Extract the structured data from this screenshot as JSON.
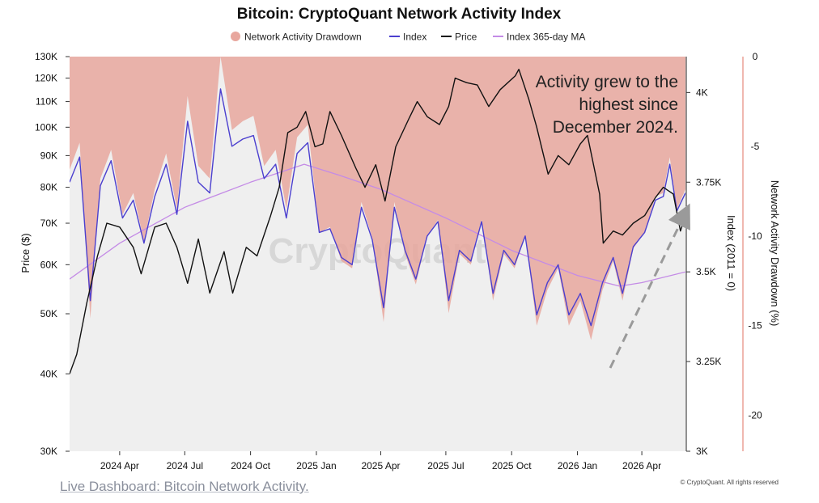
{
  "chart_data": {
    "type": "line",
    "title": "Bitcoin: CryptoQuant Network Activity Index",
    "legend": {
      "placement": "top-center",
      "entries": [
        {
          "name": "Network Activity Drawdown",
          "color": "#e8a79e",
          "shape": "dot"
        },
        {
          "name": "Index",
          "color": "#4b3fcf",
          "shape": "line"
        },
        {
          "name": "Price",
          "color": "#111111",
          "shape": "line"
        },
        {
          "name": "Index 365-day MA",
          "color": "#c48be6",
          "shape": "line"
        }
      ]
    },
    "x_ticks": [
      "2024 Apr",
      "2024 Jul",
      "2024 Oct",
      "2025 Jan",
      "2025 Apr",
      "2025 Jul",
      "2025 Oct",
      "2026 Jan",
      "2026 Apr"
    ],
    "x_range": [
      "2024-01-22",
      "2026-06-01"
    ],
    "y_left": {
      "label": "Price ($)",
      "scale": "log",
      "range": [
        30000,
        130000
      ],
      "ticks": [
        "130K",
        "120K",
        "110K",
        "100K",
        "90K",
        "80K",
        "70K",
        "60K",
        "50K",
        "40K",
        "30K"
      ]
    },
    "y_right_index": {
      "label": "Index (2011 = 0)",
      "range": [
        3000,
        4100
      ],
      "ticks": [
        "4K",
        "3.75K",
        "3.5K",
        "3.25K",
        "3K"
      ]
    },
    "y_right_drawdown": {
      "label": "Network Activity Drawdown (%)",
      "range": [
        -22,
        0
      ],
      "ticks": [
        "0",
        "-5",
        "-10",
        "-15",
        "-20"
      ]
    },
    "series": [
      {
        "name": "Price",
        "axis": "price",
        "color": "#111111",
        "x": [
          "2024-01-22",
          "2024-02-01",
          "2024-02-15",
          "2024-03-01",
          "2024-03-14",
          "2024-04-01",
          "2024-04-20",
          "2024-05-01",
          "2024-05-20",
          "2024-06-05",
          "2024-06-20",
          "2024-07-05",
          "2024-07-20",
          "2024-08-05",
          "2024-08-25",
          "2024-09-06",
          "2024-09-25",
          "2024-10-10",
          "2024-10-29",
          "2024-11-10",
          "2024-11-22",
          "2024-12-05",
          "2024-12-17",
          "2024-12-30",
          "2025-01-10",
          "2025-01-20",
          "2025-02-05",
          "2025-02-25",
          "2025-03-10",
          "2025-03-25",
          "2025-04-07",
          "2025-04-22",
          "2025-05-10",
          "2025-05-22",
          "2025-06-05",
          "2025-06-22",
          "2025-07-05",
          "2025-07-14",
          "2025-07-30",
          "2025-08-14",
          "2025-08-30",
          "2025-09-15",
          "2025-10-06",
          "2025-10-11",
          "2025-10-25",
          "2025-11-05",
          "2025-11-21",
          "2025-12-05",
          "2025-12-20",
          "2026-01-05",
          "2026-01-15",
          "2026-02-01",
          "2026-02-06",
          "2026-02-20",
          "2026-03-05",
          "2026-03-20",
          "2026-04-05",
          "2026-04-20",
          "2026-05-01",
          "2026-05-15",
          "2026-05-25",
          "2026-06-01"
        ],
        "values": [
          40000,
          43000,
          52000,
          62000,
          70000,
          69000,
          64000,
          58000,
          69000,
          70000,
          64000,
          56000,
          66000,
          54000,
          63000,
          54000,
          64000,
          62000,
          72000,
          80000,
          98000,
          100000,
          106000,
          93000,
          94000,
          106000,
          97000,
          86000,
          80000,
          87000,
          76000,
          93000,
          103000,
          110000,
          104000,
          101000,
          108000,
          120000,
          118000,
          117000,
          108000,
          115000,
          121000,
          124000,
          111000,
          100000,
          84000,
          90000,
          87000,
          94000,
          97000,
          78000,
          65000,
          68000,
          67000,
          70000,
          72000,
          77000,
          80000,
          78000,
          68000,
          72000
        ]
      },
      {
        "name": "Index",
        "axis": "index",
        "color": "#4b3fcf",
        "x": [
          "2024-01-22",
          "2024-02-05",
          "2024-02-20",
          "2024-03-05",
          "2024-03-20",
          "2024-04-05",
          "2024-04-20",
          "2024-05-05",
          "2024-05-20",
          "2024-06-05",
          "2024-06-20",
          "2024-07-05",
          "2024-07-20",
          "2024-08-05",
          "2024-08-20",
          "2024-09-05",
          "2024-09-20",
          "2024-10-05",
          "2024-10-20",
          "2024-11-05",
          "2024-11-20",
          "2024-12-05",
          "2024-12-20",
          "2025-01-05",
          "2025-01-20",
          "2025-02-05",
          "2025-02-20",
          "2025-03-05",
          "2025-03-20",
          "2025-04-05",
          "2025-04-20",
          "2025-05-05",
          "2025-05-20",
          "2025-06-05",
          "2025-06-20",
          "2025-07-05",
          "2025-07-20",
          "2025-08-05",
          "2025-08-20",
          "2025-09-05",
          "2025-09-20",
          "2025-10-05",
          "2025-10-20",
          "2025-11-05",
          "2025-11-20",
          "2025-12-05",
          "2025-12-20",
          "2026-01-05",
          "2026-01-20",
          "2026-02-05",
          "2026-02-20",
          "2026-03-05",
          "2026-03-20",
          "2026-04-05",
          "2026-04-20",
          "2026-05-01",
          "2026-05-10",
          "2026-05-20",
          "2026-06-01"
        ],
        "values": [
          3750,
          3820,
          3420,
          3740,
          3810,
          3650,
          3700,
          3580,
          3710,
          3800,
          3660,
          3920,
          3750,
          3720,
          4010,
          3850,
          3870,
          3880,
          3760,
          3800,
          3650,
          3830,
          3860,
          3610,
          3620,
          3540,
          3520,
          3680,
          3590,
          3400,
          3680,
          3560,
          3480,
          3600,
          3640,
          3420,
          3560,
          3530,
          3640,
          3440,
          3560,
          3520,
          3600,
          3380,
          3470,
          3520,
          3380,
          3440,
          3350,
          3470,
          3540,
          3440,
          3570,
          3610,
          3700,
          3710,
          3800,
          3670,
          3720
        ]
      },
      {
        "name": "Index 365-day MA",
        "axis": "index",
        "color": "#c48be6",
        "x": [
          "2024-01-22",
          "2024-04-01",
          "2024-07-01",
          "2024-10-01",
          "2024-12-15",
          "2025-02-01",
          "2025-04-01",
          "2025-07-01",
          "2025-10-01",
          "2026-01-01",
          "2026-03-01",
          "2026-04-01",
          "2026-06-01"
        ],
        "values": [
          3480,
          3580,
          3680,
          3750,
          3800,
          3770,
          3730,
          3650,
          3560,
          3490,
          3460,
          3470,
          3500
        ]
      },
      {
        "name": "Network Activity Drawdown",
        "axis": "drawdown",
        "color": "#e8a79e",
        "x": [
          "2024-01-22",
          "2024-02-05",
          "2024-02-20",
          "2024-03-05",
          "2024-03-20",
          "2024-04-05",
          "2024-04-20",
          "2024-05-05",
          "2024-05-20",
          "2024-06-05",
          "2024-06-20",
          "2024-07-05",
          "2024-07-20",
          "2024-08-05",
          "2024-08-20",
          "2024-09-05",
          "2024-09-20",
          "2024-10-05",
          "2024-10-20",
          "2024-11-05",
          "2024-11-20",
          "2024-12-05",
          "2024-12-20",
          "2025-01-05",
          "2025-01-20",
          "2025-02-05",
          "2025-02-20",
          "2025-03-05",
          "2025-03-20",
          "2025-04-05",
          "2025-04-20",
          "2025-05-05",
          "2025-05-20",
          "2025-06-05",
          "2025-06-20",
          "2025-07-05",
          "2025-07-20",
          "2025-08-05",
          "2025-08-20",
          "2025-09-05",
          "2025-09-20",
          "2025-10-05",
          "2025-10-20",
          "2025-11-05",
          "2025-11-20",
          "2025-12-05",
          "2025-12-20",
          "2026-01-05",
          "2026-01-20",
          "2026-02-05",
          "2026-02-20",
          "2026-03-05",
          "2026-03-20",
          "2026-04-05",
          "2026-04-20",
          "2026-05-01",
          "2026-05-10",
          "2026-05-20",
          "2026-06-01"
        ],
        "values": [
          -6.3,
          -4.8,
          -14.6,
          -6.8,
          -5.2,
          -8.8,
          -7.6,
          -10.3,
          -7.4,
          -5.4,
          -8.5,
          -2.2,
          -6.1,
          -6.8,
          0.0,
          -4.1,
          -3.6,
          -3.3,
          -6.1,
          -5.2,
          -8.5,
          -4.5,
          -3.8,
          -9.8,
          -9.5,
          -11.4,
          -11.8,
          -8.1,
          -10.1,
          -14.8,
          -8.1,
          -11.0,
          -12.7,
          -10.0,
          -9.1,
          -14.3,
          -11.0,
          -11.6,
          -9.1,
          -13.6,
          -11.0,
          -11.8,
          -10.0,
          -15.0,
          -13.0,
          -11.8,
          -15.0,
          -13.6,
          -15.8,
          -13.0,
          -11.4,
          -13.6,
          -10.7,
          -9.8,
          -7.8,
          -7.6,
          -5.6,
          -8.5,
          -7.4
        ]
      }
    ],
    "annotation": {
      "lines": [
        "Activity grew to the",
        "highest since",
        "December 2024."
      ],
      "arrow": "dashed grey arrow pointing up-right toward the latest Index values"
    },
    "watermark": "CryptoQuant",
    "grid": false
  },
  "copyright": "© CryptoQuant. All rights reserved",
  "link_text": "Live Dashboard: Bitcoin Network Activity."
}
